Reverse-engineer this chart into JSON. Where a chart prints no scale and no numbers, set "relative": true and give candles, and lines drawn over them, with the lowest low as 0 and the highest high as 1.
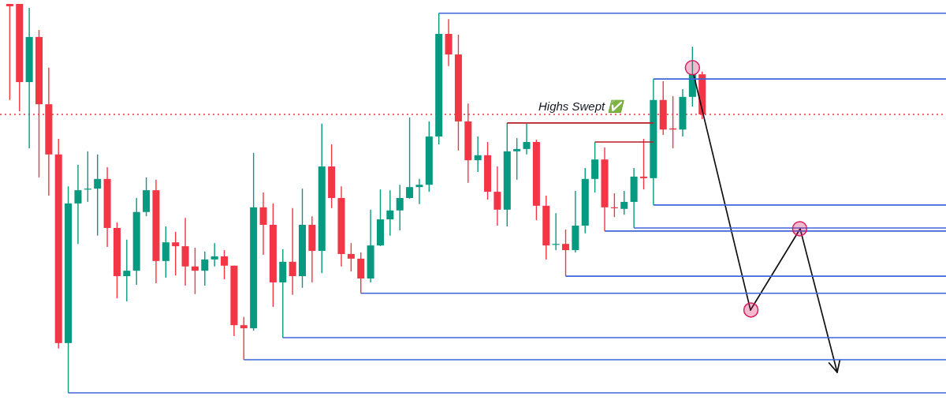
{
  "chart_data": {
    "type": "candlestick",
    "relative": true,
    "categories": [
      null,
      null,
      null,
      null,
      null,
      null,
      null,
      null,
      null,
      null,
      null,
      null,
      null,
      null,
      null,
      null,
      null,
      null,
      null,
      null,
      null,
      null,
      null,
      null,
      null,
      null,
      null,
      null,
      null,
      null,
      null,
      null,
      null,
      null,
      null,
      null,
      null,
      null,
      null,
      null,
      null,
      null,
      null,
      null,
      null,
      null,
      null,
      null,
      null,
      null,
      null,
      null,
      null,
      null,
      null,
      null,
      null,
      null,
      null,
      null,
      null,
      null,
      null,
      null,
      null,
      null,
      null,
      null,
      null,
      null,
      null,
      null,
      null,
      null,
      null,
      null,
      null,
      null,
      null,
      null,
      null,
      null,
      null,
      null,
      null,
      null,
      null,
      null,
      null,
      null,
      null,
      null,
      null,
      null,
      null,
      null,
      null
    ],
    "ohlc": [
      [
        1.0,
        1.0,
        0.753,
        0.994
      ],
      [
        1.0,
        1.0,
        0.724,
        0.799
      ],
      [
        0.799,
        0.99,
        0.629,
        0.915
      ],
      [
        0.915,
        0.933,
        0.554,
        0.742
      ],
      [
        0.742,
        0.836,
        0.507,
        0.613
      ],
      [
        0.613,
        0.653,
        0.114,
        0.128
      ],
      [
        0.128,
        0.531,
        0,
        0.487
      ],
      [
        0.487,
        0.586,
        0.383,
        0.521
      ],
      [
        0.523,
        0.621,
        0.491,
        0.525
      ],
      [
        0.525,
        0.613,
        0.404,
        0.55
      ],
      [
        0.55,
        0.58,
        0.375,
        0.424
      ],
      [
        0.424,
        0.438,
        0.243,
        0.3
      ],
      [
        0.3,
        0.394,
        0.235,
        0.314
      ],
      [
        0.314,
        0.501,
        0.278,
        0.465
      ],
      [
        0.465,
        0.554,
        0.454,
        0.521
      ],
      [
        0.521,
        0.548,
        0.282,
        0.339
      ],
      [
        0.339,
        0.428,
        0.296,
        0.387
      ],
      [
        0.387,
        0.414,
        0.302,
        0.377
      ],
      [
        0.377,
        0.45,
        0.276,
        0.325
      ],
      [
        0.325,
        0.373,
        0.254,
        0.314
      ],
      [
        0.314,
        0.363,
        0.276,
        0.343
      ],
      [
        0.343,
        0.385,
        0.325,
        0.351
      ],
      [
        0.351,
        0.367,
        0.292,
        0.327
      ],
      [
        0.327,
        0.327,
        0.146,
        0.174
      ],
      [
        0.174,
        0.195,
        0.085,
        0.166
      ],
      [
        0.166,
        0.617,
        0.16,
        0.477
      ],
      [
        0.477,
        0.515,
        0.355,
        0.432
      ],
      [
        0.432,
        0.487,
        0.221,
        0.284
      ],
      [
        0.284,
        0.369,
        0.142,
        0.337
      ],
      [
        0.337,
        0.475,
        0.252,
        0.3
      ],
      [
        0.3,
        0.525,
        0.27,
        0.432
      ],
      [
        0.432,
        0.454,
        0.284,
        0.365
      ],
      [
        0.365,
        0.692,
        0.308,
        0.582
      ],
      [
        0.582,
        0.639,
        0.475,
        0.501
      ],
      [
        0.501,
        0.531,
        0.325,
        0.357
      ],
      [
        0.357,
        0.385,
        0.312,
        0.345
      ],
      [
        0.345,
        0.361,
        0.256,
        0.294
      ],
      [
        0.294,
        0.471,
        0.284,
        0.379
      ],
      [
        0.379,
        0.523,
        0.377,
        0.446
      ],
      [
        0.446,
        0.521,
        0.404,
        0.469
      ],
      [
        0.469,
        0.535,
        0.418,
        0.501
      ],
      [
        0.501,
        0.708,
        0.499,
        0.529
      ],
      [
        0.529,
        0.55,
        0.485,
        0.535
      ],
      [
        0.535,
        0.698,
        0.517,
        0.659
      ],
      [
        0.659,
        0.976,
        0.639,
        0.923
      ],
      [
        0.923,
        0.961,
        0.84,
        0.87
      ],
      [
        0.87,
        0.921,
        0.623,
        0.698
      ],
      [
        0.698,
        0.744,
        0.54,
        0.598
      ],
      [
        0.598,
        0.659,
        0.568,
        0.611
      ],
      [
        0.611,
        0.645,
        0.497,
        0.517
      ],
      [
        0.517,
        0.582,
        0.43,
        0.471
      ],
      [
        0.471,
        0.694,
        0.428,
        0.621
      ],
      [
        0.621,
        0.655,
        0.548,
        0.627
      ],
      [
        0.627,
        0.692,
        0.613,
        0.645
      ],
      [
        0.645,
        0.651,
        0.444,
        0.481
      ],
      [
        0.481,
        0.507,
        0.343,
        0.379
      ],
      [
        0.381,
        0.462,
        0.367,
        0.383
      ],
      [
        0.383,
        0.42,
        0.3,
        0.367
      ],
      [
        0.367,
        0.519,
        0.361,
        0.43
      ],
      [
        0.43,
        0.578,
        0.41,
        0.55
      ],
      [
        0.55,
        0.645,
        0.515,
        0.6
      ],
      [
        0.6,
        0.631,
        0.416,
        0.477
      ],
      [
        0.477,
        0.513,
        0.452,
        0.475
      ],
      [
        0.473,
        0.519,
        0.458,
        0.491
      ],
      [
        0.491,
        0.578,
        0.424,
        0.556
      ],
      [
        0.556,
        0.653,
        0.523,
        0.552
      ],
      [
        0.552,
        0.807,
        0.483,
        0.753
      ],
      [
        0.753,
        0.801,
        0.663,
        0.677
      ],
      [
        0.68,
        0.763,
        0.629,
        0.677
      ],
      [
        0.677,
        0.781,
        0.659,
        0.761
      ],
      [
        0.761,
        0.89,
        0.736,
        0.819
      ],
      [
        0.819,
        0.826,
        0.704,
        0.716
      ],
      null,
      null,
      null,
      null,
      null,
      null,
      null,
      null,
      null,
      null,
      null,
      null,
      null,
      null,
      null,
      null,
      null,
      null,
      null,
      null,
      null,
      null,
      null,
      null,
      null
    ],
    "colors": [
      "#f23645",
      "#f23645",
      "#089981",
      "#f23645",
      "#f23645",
      "#f23645",
      "#089981",
      "#089981",
      "#089981",
      "#089981",
      "#f23645",
      "#f23645",
      "#089981",
      "#089981",
      "#089981",
      "#f23645",
      "#089981",
      "#f23645",
      "#f23645",
      "#f23645",
      "#089981",
      "#089981",
      "#f23645",
      "#f23645",
      "#f23645",
      "#089981",
      "#f23645",
      "#f23645",
      "#089981",
      "#f23645",
      "#089981",
      "#f23645",
      "#089981",
      "#f23645",
      "#f23645",
      "#f23645",
      "#f23645",
      "#089981",
      "#089981",
      "#089981",
      "#089981",
      "#089981",
      "#089981",
      "#089981",
      "#089981",
      "#f23645",
      "#f23645",
      "#f23645",
      "#089981",
      "#f23645",
      "#f23645",
      "#089981",
      "#089981",
      "#089981",
      "#f23645",
      "#f23645",
      "#089981",
      "#f23645",
      "#089981",
      "#089981",
      "#089981",
      "#f23645",
      "#f23645",
      "#089981",
      "#089981",
      "#f23645",
      "#089981",
      "#f23645",
      "#f23645",
      "#089981",
      "#089981",
      "#f23645",
      null,
      null,
      null,
      null,
      null,
      null,
      null,
      null,
      null,
      null,
      null,
      null,
      null,
      null,
      null,
      null,
      null,
      null,
      null,
      null,
      null,
      null,
      null,
      null,
      null
    ],
    "series": [
      {
        "type": "line",
        "color": "#3d64d8",
        "values": [
          null,
          null,
          null,
          null,
          null,
          null,
          null,
          null,
          null,
          null,
          null,
          null,
          null,
          null,
          null,
          null,
          null,
          null,
          null,
          null,
          null,
          null,
          null,
          null,
          null,
          null,
          null,
          null,
          null,
          null,
          null,
          null,
          null,
          null,
          null,
          null,
          null,
          null,
          null,
          null,
          null,
          null,
          null,
          null,
          0.976,
          0.976,
          0.976,
          0.976,
          0.976,
          0.976,
          0.976,
          0.976,
          0.976,
          0.976,
          0.976,
          0.976,
          0.976,
          0.976,
          0.976,
          0.976,
          0.976,
          0.976,
          0.976,
          0.976,
          0.976,
          0.976,
          0.976,
          0.976,
          0.976,
          0.976,
          0.976,
          0.976,
          0.976,
          0.976,
          0.976,
          0.976,
          0.976,
          0.976,
          0.976,
          0.976,
          0.976,
          0.976,
          0.976,
          0.976,
          0.976,
          0.976,
          0.976,
          0.976,
          0.976,
          0.976,
          0.976,
          0.976,
          0.976,
          0.976,
          0.976,
          0.976,
          0.976
        ]
      },
      {
        "type": "line",
        "color": "#3d64d8",
        "values": [
          null,
          null,
          null,
          null,
          null,
          null,
          null,
          null,
          null,
          null,
          null,
          null,
          null,
          null,
          null,
          null,
          null,
          null,
          null,
          null,
          null,
          null,
          null,
          null,
          null,
          null,
          null,
          null,
          null,
          null,
          null,
          null,
          null,
          null,
          null,
          null,
          null,
          null,
          null,
          null,
          null,
          null,
          null,
          null,
          null,
          null,
          null,
          null,
          null,
          null,
          null,
          null,
          null,
          null,
          null,
          null,
          null,
          null,
          null,
          null,
          null,
          null,
          null,
          null,
          null,
          null,
          0.807,
          0.807,
          0.807,
          0.807,
          0.807,
          0.807,
          0.807,
          0.807,
          0.807,
          0.807,
          0.807,
          0.807,
          0.807,
          0.807,
          0.807,
          0.807,
          0.807,
          0.807,
          0.807,
          0.807,
          0.807,
          0.807,
          0.807,
          0.807,
          0.807,
          0.807,
          0.807,
          0.807,
          0.807,
          0.807,
          0.807
        ]
      },
      {
        "type": "line",
        "color": "#3d64d8",
        "values": [
          null,
          null,
          null,
          null,
          null,
          null,
          null,
          null,
          null,
          null,
          null,
          null,
          null,
          null,
          null,
          null,
          null,
          null,
          null,
          null,
          null,
          null,
          null,
          null,
          null,
          null,
          null,
          null,
          null,
          null,
          null,
          null,
          null,
          null,
          null,
          null,
          null,
          null,
          null,
          null,
          null,
          null,
          null,
          null,
          null,
          null,
          null,
          null,
          null,
          null,
          null,
          null,
          null,
          null,
          null,
          null,
          null,
          null,
          null,
          null,
          null,
          null,
          null,
          null,
          null,
          null,
          0.483,
          0.483,
          0.483,
          0.483,
          0.483,
          0.483,
          0.483,
          0.483,
          0.483,
          0.483,
          0.483,
          0.483,
          0.483,
          0.483,
          0.483,
          0.483,
          0.483,
          0.483,
          0.483,
          0.483,
          0.483,
          0.483,
          0.483,
          0.483,
          0.483,
          0.483,
          0.483,
          0.483,
          0.483,
          0.483,
          0.483
        ]
      },
      {
        "type": "line",
        "color": "#3d64d8",
        "values": [
          null,
          null,
          null,
          null,
          null,
          null,
          null,
          null,
          null,
          null,
          null,
          null,
          null,
          null,
          null,
          null,
          null,
          null,
          null,
          null,
          null,
          null,
          null,
          null,
          null,
          null,
          null,
          null,
          null,
          null,
          null,
          null,
          null,
          null,
          null,
          null,
          null,
          null,
          null,
          null,
          null,
          null,
          null,
          null,
          null,
          null,
          null,
          null,
          null,
          null,
          null,
          null,
          null,
          null,
          null,
          null,
          null,
          null,
          null,
          null,
          null,
          null,
          null,
          null,
          0.424,
          0.424,
          0.424,
          0.424,
          0.424,
          0.424,
          0.424,
          0.424,
          0.424,
          0.424,
          0.424,
          0.424,
          0.424,
          0.424,
          0.424,
          0.424,
          0.424,
          0.424,
          0.424,
          0.424,
          0.424,
          0.424,
          0.424,
          0.424,
          0.424,
          0.424,
          0.424,
          0.424,
          0.424,
          0.424,
          0.424,
          0.424,
          0.424
        ]
      },
      {
        "type": "line",
        "color": "#3d64d8",
        "values": [
          null,
          null,
          null,
          null,
          null,
          null,
          null,
          null,
          null,
          null,
          null,
          null,
          null,
          null,
          null,
          null,
          null,
          null,
          null,
          null,
          null,
          null,
          null,
          null,
          null,
          null,
          null,
          null,
          null,
          null,
          null,
          null,
          null,
          null,
          null,
          null,
          null,
          null,
          null,
          null,
          null,
          null,
          null,
          null,
          null,
          null,
          null,
          null,
          null,
          null,
          null,
          null,
          null,
          null,
          null,
          null,
          null,
          null,
          null,
          null,
          null,
          0.416,
          0.416,
          0.416,
          0.416,
          0.416,
          0.416,
          0.416,
          0.416,
          0.416,
          0.416,
          0.416,
          0.416,
          0.416,
          0.416,
          0.416,
          0.416,
          0.416,
          0.416,
          0.416,
          0.416,
          0.416,
          0.416,
          0.416,
          0.416,
          0.416,
          0.416,
          0.416,
          0.416,
          0.416,
          0.416,
          0.416,
          0.416,
          0.416,
          0.416,
          0.416,
          0.416
        ]
      },
      {
        "type": "line",
        "color": "#3d64d8",
        "values": [
          null,
          null,
          null,
          null,
          null,
          null,
          null,
          null,
          null,
          null,
          null,
          null,
          null,
          null,
          null,
          null,
          null,
          null,
          null,
          null,
          null,
          null,
          null,
          null,
          null,
          null,
          null,
          null,
          null,
          null,
          null,
          null,
          null,
          null,
          null,
          null,
          null,
          null,
          null,
          null,
          null,
          null,
          null,
          null,
          null,
          null,
          null,
          null,
          null,
          null,
          null,
          null,
          null,
          null,
          null,
          null,
          null,
          0.3,
          0.3,
          0.3,
          0.3,
          0.3,
          0.3,
          0.3,
          0.3,
          0.3,
          0.3,
          0.3,
          0.3,
          0.3,
          0.3,
          0.3,
          0.3,
          0.3,
          0.3,
          0.3,
          0.3,
          0.3,
          0.3,
          0.3,
          0.3,
          0.3,
          0.3,
          0.3,
          0.3,
          0.3,
          0.3,
          0.3,
          0.3,
          0.3,
          0.3,
          0.3,
          0.3,
          0.3,
          0.3,
          0.3,
          0.3
        ]
      },
      {
        "type": "line",
        "color": "#3d64d8",
        "values": [
          null,
          null,
          null,
          null,
          null,
          null,
          null,
          null,
          null,
          null,
          null,
          null,
          null,
          null,
          null,
          null,
          null,
          null,
          null,
          null,
          null,
          null,
          null,
          null,
          null,
          null,
          null,
          null,
          null,
          null,
          null,
          null,
          null,
          null,
          null,
          null,
          0.256,
          0.256,
          0.256,
          0.256,
          0.256,
          0.256,
          0.256,
          0.256,
          0.256,
          0.256,
          0.256,
          0.256,
          0.256,
          0.256,
          0.256,
          0.256,
          0.256,
          0.256,
          0.256,
          0.256,
          0.256,
          0.256,
          0.256,
          0.256,
          0.256,
          0.256,
          0.256,
          0.256,
          0.256,
          0.256,
          0.256,
          0.256,
          0.256,
          0.256,
          0.256,
          0.256,
          0.256,
          0.256,
          0.256,
          0.256,
          0.256,
          0.256,
          0.256,
          0.256,
          0.256,
          0.256,
          0.256,
          0.256,
          0.256,
          0.256,
          0.256,
          0.256,
          0.256,
          0.256,
          0.256,
          0.256,
          0.256,
          0.256,
          0.256,
          0.256,
          0.256
        ]
      },
      {
        "type": "line",
        "color": "#3d64d8",
        "values": [
          null,
          null,
          null,
          null,
          null,
          null,
          null,
          null,
          null,
          null,
          null,
          null,
          null,
          null,
          null,
          null,
          null,
          null,
          null,
          null,
          null,
          null,
          null,
          null,
          null,
          null,
          null,
          null,
          0.142,
          0.142,
          0.142,
          0.142,
          0.142,
          0.142,
          0.142,
          0.142,
          0.142,
          0.142,
          0.142,
          0.142,
          0.142,
          0.142,
          0.142,
          0.142,
          0.142,
          0.142,
          0.142,
          0.142,
          0.142,
          0.142,
          0.142,
          0.142,
          0.142,
          0.142,
          0.142,
          0.142,
          0.142,
          0.142,
          0.142,
          0.142,
          0.142,
          0.142,
          0.142,
          0.142,
          0.142,
          0.142,
          0.142,
          0.142,
          0.142,
          0.142,
          0.142,
          0.142,
          0.142,
          0.142,
          0.142,
          0.142,
          0.142,
          0.142,
          0.142,
          0.142,
          0.142,
          0.142,
          0.142,
          0.142,
          0.142,
          0.142,
          0.142,
          0.142,
          0.142,
          0.142,
          0.142,
          0.142,
          0.142,
          0.142,
          0.142,
          0.142,
          0.142
        ]
      },
      {
        "type": "line",
        "color": "#3d64d8",
        "values": [
          null,
          null,
          null,
          null,
          null,
          null,
          null,
          null,
          null,
          null,
          null,
          null,
          null,
          null,
          null,
          null,
          null,
          null,
          null,
          null,
          null,
          null,
          null,
          null,
          0.085,
          0.085,
          0.085,
          0.085,
          0.085,
          0.085,
          0.085,
          0.085,
          0.085,
          0.085,
          0.085,
          0.085,
          0.085,
          0.085,
          0.085,
          0.085,
          0.085,
          0.085,
          0.085,
          0.085,
          0.085,
          0.085,
          0.085,
          0.085,
          0.085,
          0.085,
          0.085,
          0.085,
          0.085,
          0.085,
          0.085,
          0.085,
          0.085,
          0.085,
          0.085,
          0.085,
          0.085,
          0.085,
          0.085,
          0.085,
          0.085,
          0.085,
          0.085,
          0.085,
          0.085,
          0.085,
          0.085,
          0.085,
          0.085,
          0.085,
          0.085,
          0.085,
          0.085,
          0.085,
          0.085,
          0.085,
          0.085,
          0.085,
          0.085,
          0.085,
          0.085,
          0.085,
          0.085,
          0.085,
          0.085,
          0.085,
          0.085,
          0.085,
          0.085,
          0.085,
          0.085,
          0.085,
          0.085
        ]
      },
      {
        "type": "line",
        "color": "#3d64d8",
        "values": [
          null,
          null,
          null,
          null,
          null,
          null,
          0,
          0,
          0,
          0,
          0,
          0,
          0,
          0,
          0,
          0,
          0,
          0,
          0,
          0,
          0,
          0,
          0,
          0,
          0,
          0,
          0,
          0,
          0,
          0,
          0,
          0,
          0,
          0,
          0,
          0,
          0,
          0,
          0,
          0,
          0,
          0,
          0,
          0,
          0,
          0,
          0,
          0,
          0,
          0,
          0,
          0,
          0,
          0,
          0,
          0,
          0,
          0,
          0,
          0,
          0,
          0,
          0,
          0,
          0,
          0,
          0,
          0,
          0,
          0,
          0,
          0,
          0,
          0,
          0,
          0,
          0,
          0,
          0,
          0,
          0,
          0,
          0,
          0,
          0,
          0,
          0,
          0,
          0,
          0,
          0,
          0,
          0,
          0,
          0,
          0,
          0
        ]
      },
      {
        "type": "line",
        "color": "#b71c2c",
        "values": [
          null,
          null,
          null,
          null,
          null,
          null,
          null,
          null,
          null,
          null,
          null,
          null,
          null,
          null,
          null,
          null,
          null,
          null,
          null,
          null,
          null,
          null,
          null,
          null,
          null,
          null,
          null,
          null,
          null,
          null,
          null,
          null,
          null,
          null,
          null,
          null,
          null,
          null,
          null,
          null,
          null,
          null,
          null,
          null,
          null,
          null,
          null,
          null,
          null,
          null,
          null,
          0.694,
          0.694,
          0.694,
          0.694,
          0.694,
          0.694,
          0.694,
          0.694,
          0.694,
          0.694,
          0.694,
          0.694,
          0.694,
          0.694,
          0.694,
          0.694,
          null,
          null,
          null,
          null,
          null,
          null,
          null,
          null,
          null,
          null,
          null,
          null,
          null,
          null,
          null,
          null,
          null,
          null,
          null,
          null,
          null,
          null,
          null,
          null,
          null,
          null,
          null,
          null,
          null,
          null
        ]
      },
      {
        "type": "line",
        "color": "#b71c2c",
        "values": [
          null,
          null,
          null,
          null,
          null,
          null,
          null,
          null,
          null,
          null,
          null,
          null,
          null,
          null,
          null,
          null,
          null,
          null,
          null,
          null,
          null,
          null,
          null,
          null,
          null,
          null,
          null,
          null,
          null,
          null,
          null,
          null,
          null,
          null,
          null,
          null,
          null,
          null,
          null,
          null,
          null,
          null,
          null,
          null,
          null,
          null,
          null,
          null,
          null,
          null,
          null,
          null,
          null,
          null,
          null,
          null,
          null,
          null,
          null,
          null,
          0.645,
          0.645,
          0.645,
          0.645,
          0.645,
          0.645,
          0.645,
          null,
          null,
          null,
          null,
          null,
          null,
          null,
          null,
          null,
          null,
          null,
          null,
          null,
          null,
          null,
          null,
          null,
          null,
          null,
          null,
          null,
          null,
          null,
          null,
          null,
          null,
          null,
          null,
          null,
          null
        ]
      },
      {
        "type": "scatter",
        "color": "#d81b60",
        "marker": "circle",
        "values": [
          null,
          null,
          null,
          null,
          null,
          null,
          null,
          null,
          null,
          null,
          null,
          null,
          null,
          null,
          null,
          null,
          null,
          null,
          null,
          null,
          null,
          null,
          null,
          null,
          null,
          null,
          null,
          null,
          null,
          null,
          null,
          null,
          null,
          null,
          null,
          null,
          null,
          null,
          null,
          null,
          null,
          null,
          null,
          null,
          null,
          null,
          null,
          null,
          null,
          null,
          null,
          null,
          null,
          null,
          null,
          null,
          null,
          null,
          null,
          null,
          null,
          null,
          null,
          null,
          null,
          null,
          null,
          null,
          null,
          null,
          0.836,
          null,
          null,
          null,
          null,
          null,
          0.213,
          null,
          null,
          null,
          null,
          0.422,
          null,
          null,
          null,
          null,
          null,
          null,
          null,
          null,
          null,
          null,
          null,
          null,
          null,
          null,
          null
        ]
      }
    ],
    "ref_lines": [
      {
        "axis": "y",
        "value": 0.716,
        "color": "#f23645",
        "line_style": "dotted"
      }
    ],
    "annotations": [
      "Highs Swept ✅"
    ],
    "line_style": "solid"
  }
}
